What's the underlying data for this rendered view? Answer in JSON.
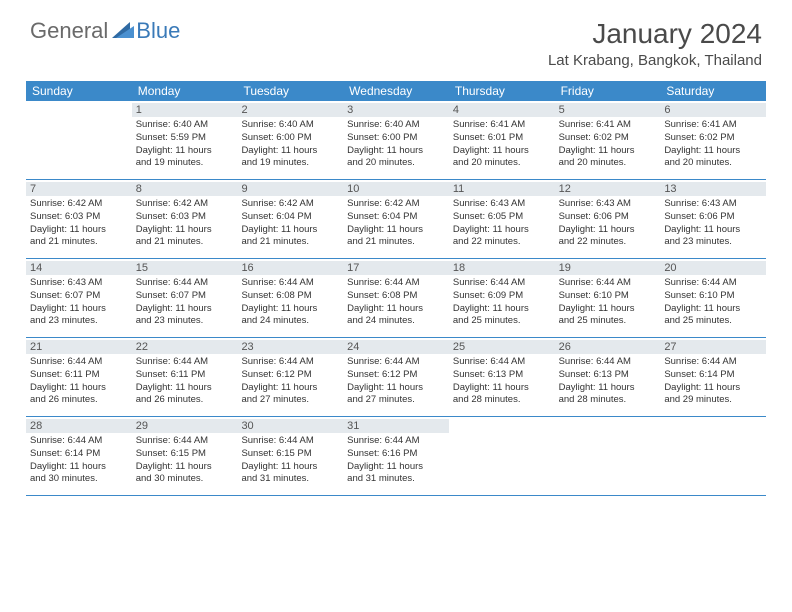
{
  "logo": {
    "part1": "General",
    "part2": "Blue"
  },
  "title": "January 2024",
  "location": "Lat Krabang, Bangkok, Thailand",
  "colors": {
    "header_bg": "#3b89c9",
    "header_text": "#ffffff",
    "daynum_bg": "#e4e9ed",
    "border": "#3b89c9",
    "logo_gray": "#6a6a6a",
    "logo_blue": "#3a7ab8",
    "text": "#333333"
  },
  "fonts": {
    "title_size": 28,
    "location_size": 15,
    "dow_size": 12,
    "daynum_size": 11,
    "body_size": 9.5
  },
  "days_of_week": [
    "Sunday",
    "Monday",
    "Tuesday",
    "Wednesday",
    "Thursday",
    "Friday",
    "Saturday"
  ],
  "weeks": [
    [
      {
        "n": "",
        "lines": []
      },
      {
        "n": "1",
        "lines": [
          "Sunrise: 6:40 AM",
          "Sunset: 5:59 PM",
          "Daylight: 11 hours",
          "and 19 minutes."
        ]
      },
      {
        "n": "2",
        "lines": [
          "Sunrise: 6:40 AM",
          "Sunset: 6:00 PM",
          "Daylight: 11 hours",
          "and 19 minutes."
        ]
      },
      {
        "n": "3",
        "lines": [
          "Sunrise: 6:40 AM",
          "Sunset: 6:00 PM",
          "Daylight: 11 hours",
          "and 20 minutes."
        ]
      },
      {
        "n": "4",
        "lines": [
          "Sunrise: 6:41 AM",
          "Sunset: 6:01 PM",
          "Daylight: 11 hours",
          "and 20 minutes."
        ]
      },
      {
        "n": "5",
        "lines": [
          "Sunrise: 6:41 AM",
          "Sunset: 6:02 PM",
          "Daylight: 11 hours",
          "and 20 minutes."
        ]
      },
      {
        "n": "6",
        "lines": [
          "Sunrise: 6:41 AM",
          "Sunset: 6:02 PM",
          "Daylight: 11 hours",
          "and 20 minutes."
        ]
      }
    ],
    [
      {
        "n": "7",
        "lines": [
          "Sunrise: 6:42 AM",
          "Sunset: 6:03 PM",
          "Daylight: 11 hours",
          "and 21 minutes."
        ]
      },
      {
        "n": "8",
        "lines": [
          "Sunrise: 6:42 AM",
          "Sunset: 6:03 PM",
          "Daylight: 11 hours",
          "and 21 minutes."
        ]
      },
      {
        "n": "9",
        "lines": [
          "Sunrise: 6:42 AM",
          "Sunset: 6:04 PM",
          "Daylight: 11 hours",
          "and 21 minutes."
        ]
      },
      {
        "n": "10",
        "lines": [
          "Sunrise: 6:42 AM",
          "Sunset: 6:04 PM",
          "Daylight: 11 hours",
          "and 21 minutes."
        ]
      },
      {
        "n": "11",
        "lines": [
          "Sunrise: 6:43 AM",
          "Sunset: 6:05 PM",
          "Daylight: 11 hours",
          "and 22 minutes."
        ]
      },
      {
        "n": "12",
        "lines": [
          "Sunrise: 6:43 AM",
          "Sunset: 6:06 PM",
          "Daylight: 11 hours",
          "and 22 minutes."
        ]
      },
      {
        "n": "13",
        "lines": [
          "Sunrise: 6:43 AM",
          "Sunset: 6:06 PM",
          "Daylight: 11 hours",
          "and 23 minutes."
        ]
      }
    ],
    [
      {
        "n": "14",
        "lines": [
          "Sunrise: 6:43 AM",
          "Sunset: 6:07 PM",
          "Daylight: 11 hours",
          "and 23 minutes."
        ]
      },
      {
        "n": "15",
        "lines": [
          "Sunrise: 6:44 AM",
          "Sunset: 6:07 PM",
          "Daylight: 11 hours",
          "and 23 minutes."
        ]
      },
      {
        "n": "16",
        "lines": [
          "Sunrise: 6:44 AM",
          "Sunset: 6:08 PM",
          "Daylight: 11 hours",
          "and 24 minutes."
        ]
      },
      {
        "n": "17",
        "lines": [
          "Sunrise: 6:44 AM",
          "Sunset: 6:08 PM",
          "Daylight: 11 hours",
          "and 24 minutes."
        ]
      },
      {
        "n": "18",
        "lines": [
          "Sunrise: 6:44 AM",
          "Sunset: 6:09 PM",
          "Daylight: 11 hours",
          "and 25 minutes."
        ]
      },
      {
        "n": "19",
        "lines": [
          "Sunrise: 6:44 AM",
          "Sunset: 6:10 PM",
          "Daylight: 11 hours",
          "and 25 minutes."
        ]
      },
      {
        "n": "20",
        "lines": [
          "Sunrise: 6:44 AM",
          "Sunset: 6:10 PM",
          "Daylight: 11 hours",
          "and 25 minutes."
        ]
      }
    ],
    [
      {
        "n": "21",
        "lines": [
          "Sunrise: 6:44 AM",
          "Sunset: 6:11 PM",
          "Daylight: 11 hours",
          "and 26 minutes."
        ]
      },
      {
        "n": "22",
        "lines": [
          "Sunrise: 6:44 AM",
          "Sunset: 6:11 PM",
          "Daylight: 11 hours",
          "and 26 minutes."
        ]
      },
      {
        "n": "23",
        "lines": [
          "Sunrise: 6:44 AM",
          "Sunset: 6:12 PM",
          "Daylight: 11 hours",
          "and 27 minutes."
        ]
      },
      {
        "n": "24",
        "lines": [
          "Sunrise: 6:44 AM",
          "Sunset: 6:12 PM",
          "Daylight: 11 hours",
          "and 27 minutes."
        ]
      },
      {
        "n": "25",
        "lines": [
          "Sunrise: 6:44 AM",
          "Sunset: 6:13 PM",
          "Daylight: 11 hours",
          "and 28 minutes."
        ]
      },
      {
        "n": "26",
        "lines": [
          "Sunrise: 6:44 AM",
          "Sunset: 6:13 PM",
          "Daylight: 11 hours",
          "and 28 minutes."
        ]
      },
      {
        "n": "27",
        "lines": [
          "Sunrise: 6:44 AM",
          "Sunset: 6:14 PM",
          "Daylight: 11 hours",
          "and 29 minutes."
        ]
      }
    ],
    [
      {
        "n": "28",
        "lines": [
          "Sunrise: 6:44 AM",
          "Sunset: 6:14 PM",
          "Daylight: 11 hours",
          "and 30 minutes."
        ]
      },
      {
        "n": "29",
        "lines": [
          "Sunrise: 6:44 AM",
          "Sunset: 6:15 PM",
          "Daylight: 11 hours",
          "and 30 minutes."
        ]
      },
      {
        "n": "30",
        "lines": [
          "Sunrise: 6:44 AM",
          "Sunset: 6:15 PM",
          "Daylight: 11 hours",
          "and 31 minutes."
        ]
      },
      {
        "n": "31",
        "lines": [
          "Sunrise: 6:44 AM",
          "Sunset: 6:16 PM",
          "Daylight: 11 hours",
          "and 31 minutes."
        ]
      },
      {
        "n": "",
        "lines": []
      },
      {
        "n": "",
        "lines": []
      },
      {
        "n": "",
        "lines": []
      }
    ]
  ]
}
